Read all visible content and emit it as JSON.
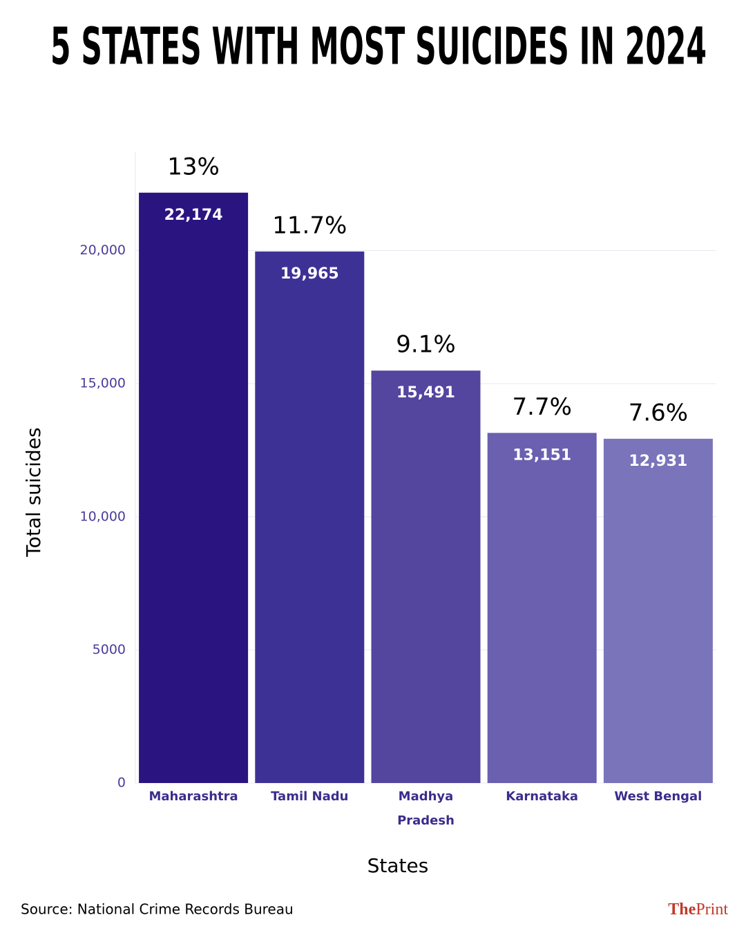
{
  "chart_data": {
    "type": "bar",
    "title": "5 STATES WITH MOST SUICIDES IN 2024",
    "categories": [
      "Maharashtra",
      "Tamil Nadu",
      "Madhya Pradesh",
      "Karnataka",
      "West Bengal"
    ],
    "values": [
      22174,
      19965,
      15491,
      13151,
      12931
    ],
    "value_labels": [
      "22,174",
      "19,965",
      "15,491",
      "13,151",
      "12,931"
    ],
    "shares": [
      13,
      11.7,
      9.1,
      7.7,
      7.6
    ],
    "share_labels": [
      "13%",
      "11.7%",
      "9.1%",
      "7.7%",
      "7.6%"
    ],
    "colors": [
      "#2a1480",
      "#3e3196",
      "#54459f",
      "#6b5fb0",
      "#7a74bb"
    ],
    "ylim": [
      0,
      23700
    ],
    "yticks": [
      0,
      5000,
      {
        "value": 10000,
        "label": "10,000"
      },
      {
        "value": 15000,
        "label": "15,000"
      },
      {
        "value": 20000,
        "label": "20,000"
      }
    ],
    "grid": true,
    "y_label": "Total suicides",
    "x_label": "States",
    "source": "Source: National Crime Records Bureau",
    "logo": {
      "prefix": "The",
      "name": "Print"
    }
  }
}
